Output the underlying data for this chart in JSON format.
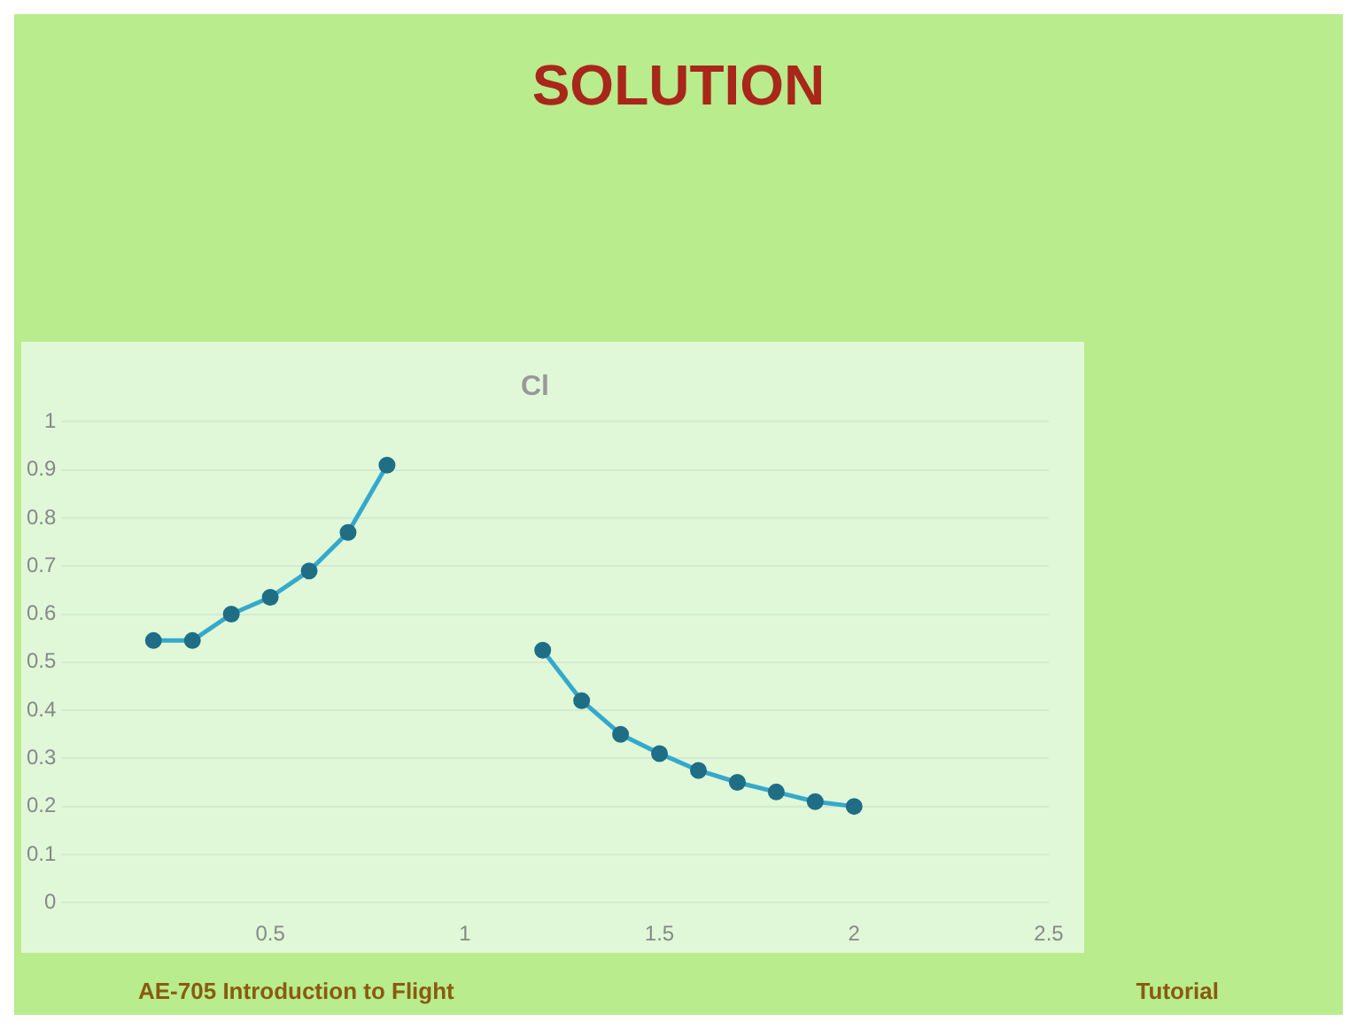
{
  "chart_data": {
    "type": "line",
    "title": "SOLUTION",
    "subtitle": "Cl",
    "x": [
      0.2,
      0.3,
      0.4,
      0.5,
      0.6,
      0.7,
      0.8,
      0.9,
      1.0,
      1.1,
      1.2,
      1.3,
      1.4,
      1.5,
      1.6,
      1.7,
      1.8,
      1.9,
      2.0
    ],
    "series": [
      {
        "color": "#35a9cc",
        "values": [
          0.545,
          0.545,
          0.6,
          0.635,
          0.69,
          0.77,
          0.91,
          null,
          null,
          null,
          0.525,
          0.42,
          0.35,
          0.31,
          0.275,
          0.25,
          0.23,
          0.21,
          0.2
        ]
      }
    ],
    "xlim": [
      0,
      2.5
    ],
    "xticks": [
      0.5,
      1,
      1.5,
      2,
      2.5
    ],
    "ylim": [
      0,
      1
    ],
    "yticks": [
      0,
      0.1,
      0.2,
      0.3,
      0.4,
      0.5,
      0.6,
      0.7,
      0.8,
      0.9,
      1
    ],
    "grid": "y",
    "legend": false,
    "marker": "circle",
    "annotations": [
      "AE-705 Introduction to Flight",
      "Tutorial"
    ]
  }
}
